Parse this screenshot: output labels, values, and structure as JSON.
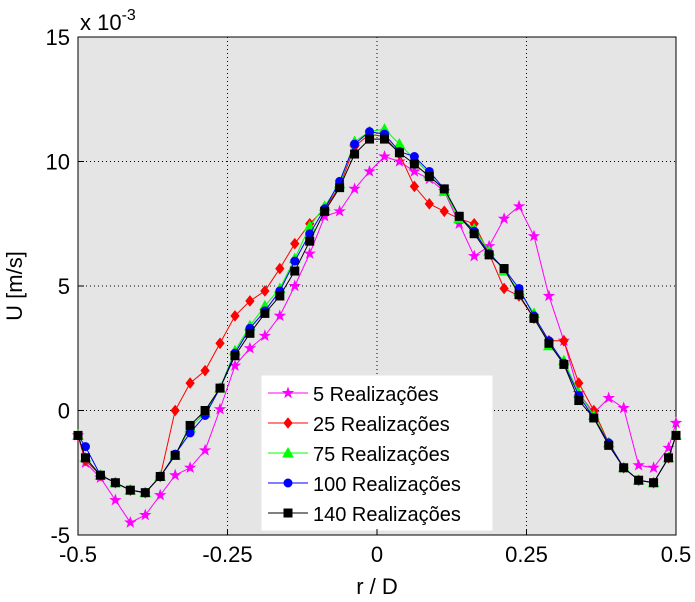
{
  "chart_data": {
    "type": "line",
    "y_multiplier": {
      "base": "x 10",
      "exponent": "-3"
    },
    "xlabel": "r / D",
    "ylabel": "U [m/s]",
    "x": [
      -0.5,
      -0.4875,
      -0.4625,
      -0.4375,
      -0.4125,
      -0.3875,
      -0.3625,
      -0.3375,
      -0.3125,
      -0.2875,
      -0.2625,
      -0.2375,
      -0.2125,
      -0.1875,
      -0.1625,
      -0.1375,
      -0.1125,
      -0.0875,
      -0.0625,
      -0.0375,
      -0.0125,
      0.0125,
      0.0375,
      0.0625,
      0.0875,
      0.1125,
      0.1375,
      0.1625,
      0.1875,
      0.2125,
      0.2375,
      0.2625,
      0.2875,
      0.3125,
      0.3375,
      0.3625,
      0.3875,
      0.4125,
      0.4375,
      0.4625,
      0.4875,
      0.5
    ],
    "xlim": [
      -0.5,
      0.5
    ],
    "xticks": [
      -0.5,
      -0.25,
      0,
      0.25,
      0.5
    ],
    "ylim": [
      -5,
      15
    ],
    "yticks": [
      -5,
      0,
      5,
      10,
      15
    ],
    "grid": true,
    "series": [
      {
        "name": "5 Realizações",
        "color": "#ff00ff",
        "marker": "star",
        "values": [
          -1,
          -2.1,
          -2.7,
          -3.6,
          -4.5,
          -4.2,
          -3.4,
          -2.6,
          -2.3,
          -1.6,
          0.05,
          1.8,
          2.5,
          3.0,
          3.8,
          5.0,
          6.3,
          7.8,
          8.0,
          8.9,
          9.6,
          10.2,
          10.0,
          9.6,
          9.3,
          8.8,
          7.5,
          6.2,
          6.6,
          7.7,
          8.2,
          7.0,
          4.6,
          2.8,
          0.7,
          -0.1,
          0.5,
          0.1,
          -2.2,
          -2.3,
          -1.5,
          -0.5
        ]
      },
      {
        "name": "25 Realizações",
        "color": "#ff0000",
        "marker": "diamond",
        "values": [
          -1,
          -2.0,
          -2.6,
          -2.9,
          -3.2,
          -3.3,
          -2.65,
          0.0,
          1.1,
          1.6,
          2.7,
          3.8,
          4.4,
          4.8,
          5.7,
          6.7,
          7.5,
          8.1,
          9.0,
          10.6,
          11.1,
          11.0,
          10.3,
          9.0,
          8.3,
          8.0,
          7.7,
          7.5,
          6.3,
          4.9,
          4.6,
          3.7,
          2.8,
          2.8,
          1.1,
          0.0,
          -1.3,
          -2.3,
          -2.8,
          -2.9,
          -1.9,
          -1
        ]
      },
      {
        "name": "75 Realizações",
        "color": "#00ff00",
        "marker": "triangle",
        "values": [
          -1,
          -1.9,
          -2.6,
          -2.9,
          -3.2,
          -3.3,
          -2.65,
          -1.8,
          -0.7,
          -0.1,
          0.9,
          2.4,
          3.4,
          4.2,
          4.9,
          6.1,
          7.4,
          8.2,
          9.1,
          10.8,
          11.2,
          11.3,
          10.7,
          10.1,
          9.5,
          8.8,
          7.7,
          7.3,
          6.4,
          5.6,
          4.8,
          3.9,
          2.6,
          2.0,
          0.7,
          -0.2,
          -1.3,
          -2.3,
          -2.8,
          -2.9,
          -1.9,
          -1
        ]
      },
      {
        "name": "100 Realizações",
        "color": "#0000ff",
        "marker": "circle",
        "values": [
          -1,
          -1.45,
          -2.6,
          -2.9,
          -3.2,
          -3.3,
          -2.65,
          -1.75,
          -0.9,
          -0.2,
          0.9,
          2.3,
          3.3,
          4.0,
          4.8,
          6.0,
          7.1,
          8.1,
          9.2,
          10.7,
          11.2,
          11.1,
          10.4,
          10.2,
          9.6,
          8.9,
          7.8,
          7.2,
          6.3,
          5.7,
          4.9,
          3.8,
          2.8,
          1.9,
          0.6,
          -0.3,
          -1.3,
          -2.3,
          -2.8,
          -2.9,
          -1.9,
          -1
        ]
      },
      {
        "name": "140 Realizações",
        "color": "#000000",
        "marker": "square",
        "values": [
          -1,
          -1.9,
          -2.6,
          -2.9,
          -3.2,
          -3.3,
          -2.65,
          -1.8,
          -0.6,
          0,
          0.9,
          2.2,
          3.1,
          3.9,
          4.6,
          5.6,
          6.8,
          8.0,
          8.95,
          10.3,
          10.9,
          10.9,
          10.35,
          9.9,
          9.4,
          8.9,
          7.8,
          7.1,
          6.25,
          5.7,
          4.65,
          3.7,
          2.7,
          1.85,
          0.4,
          -0.3,
          -1.4,
          -2.3,
          -2.8,
          -2.9,
          -1.9,
          -1
        ]
      }
    ]
  }
}
